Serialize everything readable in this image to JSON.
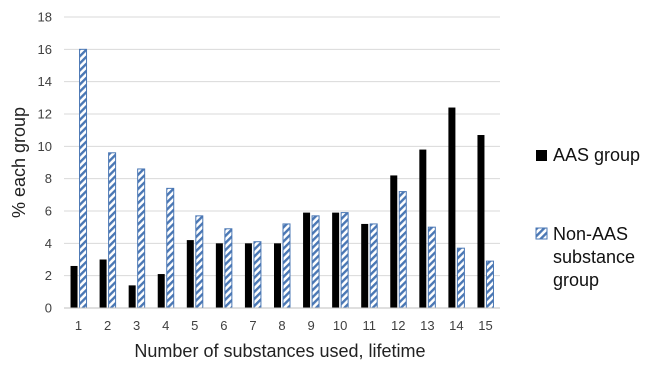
{
  "chart_data": {
    "type": "bar",
    "title": "",
    "xlabel": "Number of substances used, lifetime",
    "ylabel": "% each group",
    "ylim": [
      0,
      18
    ],
    "yticks": [
      0,
      2,
      4,
      6,
      8,
      10,
      12,
      14,
      16,
      18
    ],
    "grid": true,
    "legend_position": "right",
    "categories": [
      "1",
      "2",
      "3",
      "4",
      "5",
      "6",
      "7",
      "8",
      "9",
      "10",
      "11",
      "12",
      "13",
      "14",
      "15"
    ],
    "series": [
      {
        "name": "AAS group",
        "style": "solid",
        "color": "#000000",
        "values": [
          2.6,
          3.0,
          1.4,
          2.1,
          4.2,
          4.0,
          4.0,
          4.0,
          5.9,
          5.9,
          5.2,
          8.2,
          9.8,
          12.4,
          10.7
        ]
      },
      {
        "name": "Non-AAS substance group",
        "legend_lines": [
          "Non-AAS",
          "substance",
          "group"
        ],
        "style": "hatched",
        "color": "#4a77b4",
        "values": [
          16.0,
          9.6,
          8.6,
          7.4,
          5.7,
          4.9,
          4.1,
          5.2,
          5.7,
          5.9,
          5.2,
          7.2,
          5.0,
          3.7,
          2.9
        ]
      }
    ]
  }
}
